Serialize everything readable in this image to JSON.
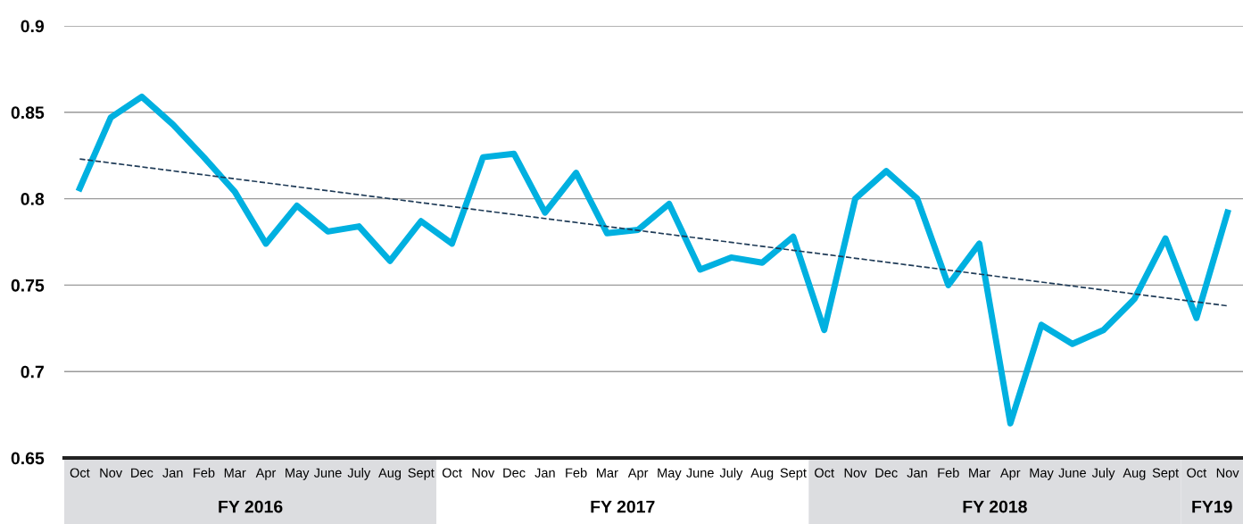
{
  "chart_data": {
    "type": "line",
    "categories": [
      "Oct",
      "Nov",
      "Dec",
      "Jan",
      "Feb",
      "Mar",
      "Apr",
      "May",
      "June",
      "July",
      "Aug",
      "Sept",
      "Oct",
      "Nov",
      "Dec",
      "Jan",
      "Feb",
      "Mar",
      "Apr",
      "May",
      "June",
      "July",
      "Aug",
      "Sept",
      "Oct",
      "Nov",
      "Dec",
      "Jan",
      "Feb",
      "Mar",
      "Apr",
      "May",
      "June",
      "July",
      "Aug",
      "Sept",
      "Oct",
      "Nov"
    ],
    "series": [
      {
        "color": "#00b0e0",
        "values": [
          0.806,
          0.847,
          0.859,
          0.843,
          0.824,
          0.804,
          0.774,
          0.796,
          0.781,
          0.784,
          0.764,
          0.787,
          0.774,
          0.824,
          0.826,
          0.792,
          0.815,
          0.78,
          0.782,
          0.797,
          0.759,
          0.766,
          0.763,
          0.778,
          0.724,
          0.8,
          0.816,
          0.8,
          0.75,
          0.774,
          0.67,
          0.727,
          0.716,
          0.724,
          0.742,
          0.777,
          0.731,
          0.792
        ]
      },
      {
        "type": "line",
        "color": "#1f3b57",
        "line_style": "dashed",
        "values": [
          0.823,
          null,
          null,
          null,
          null,
          null,
          null,
          null,
          null,
          null,
          null,
          null,
          null,
          null,
          null,
          null,
          null,
          null,
          null,
          null,
          null,
          null,
          null,
          null,
          null,
          null,
          null,
          null,
          null,
          null,
          null,
          null,
          null,
          null,
          null,
          null,
          null,
          0.738
        ]
      }
    ],
    "ylim": [
      0.65,
      0.9
    ],
    "yticks": [
      0.65,
      0.7,
      0.75,
      0.8,
      0.85,
      0.9
    ],
    "grid": "y",
    "annotations": [
      "FY 2016",
      "FY 2017",
      "FY 2018",
      "FY19"
    ]
  }
}
